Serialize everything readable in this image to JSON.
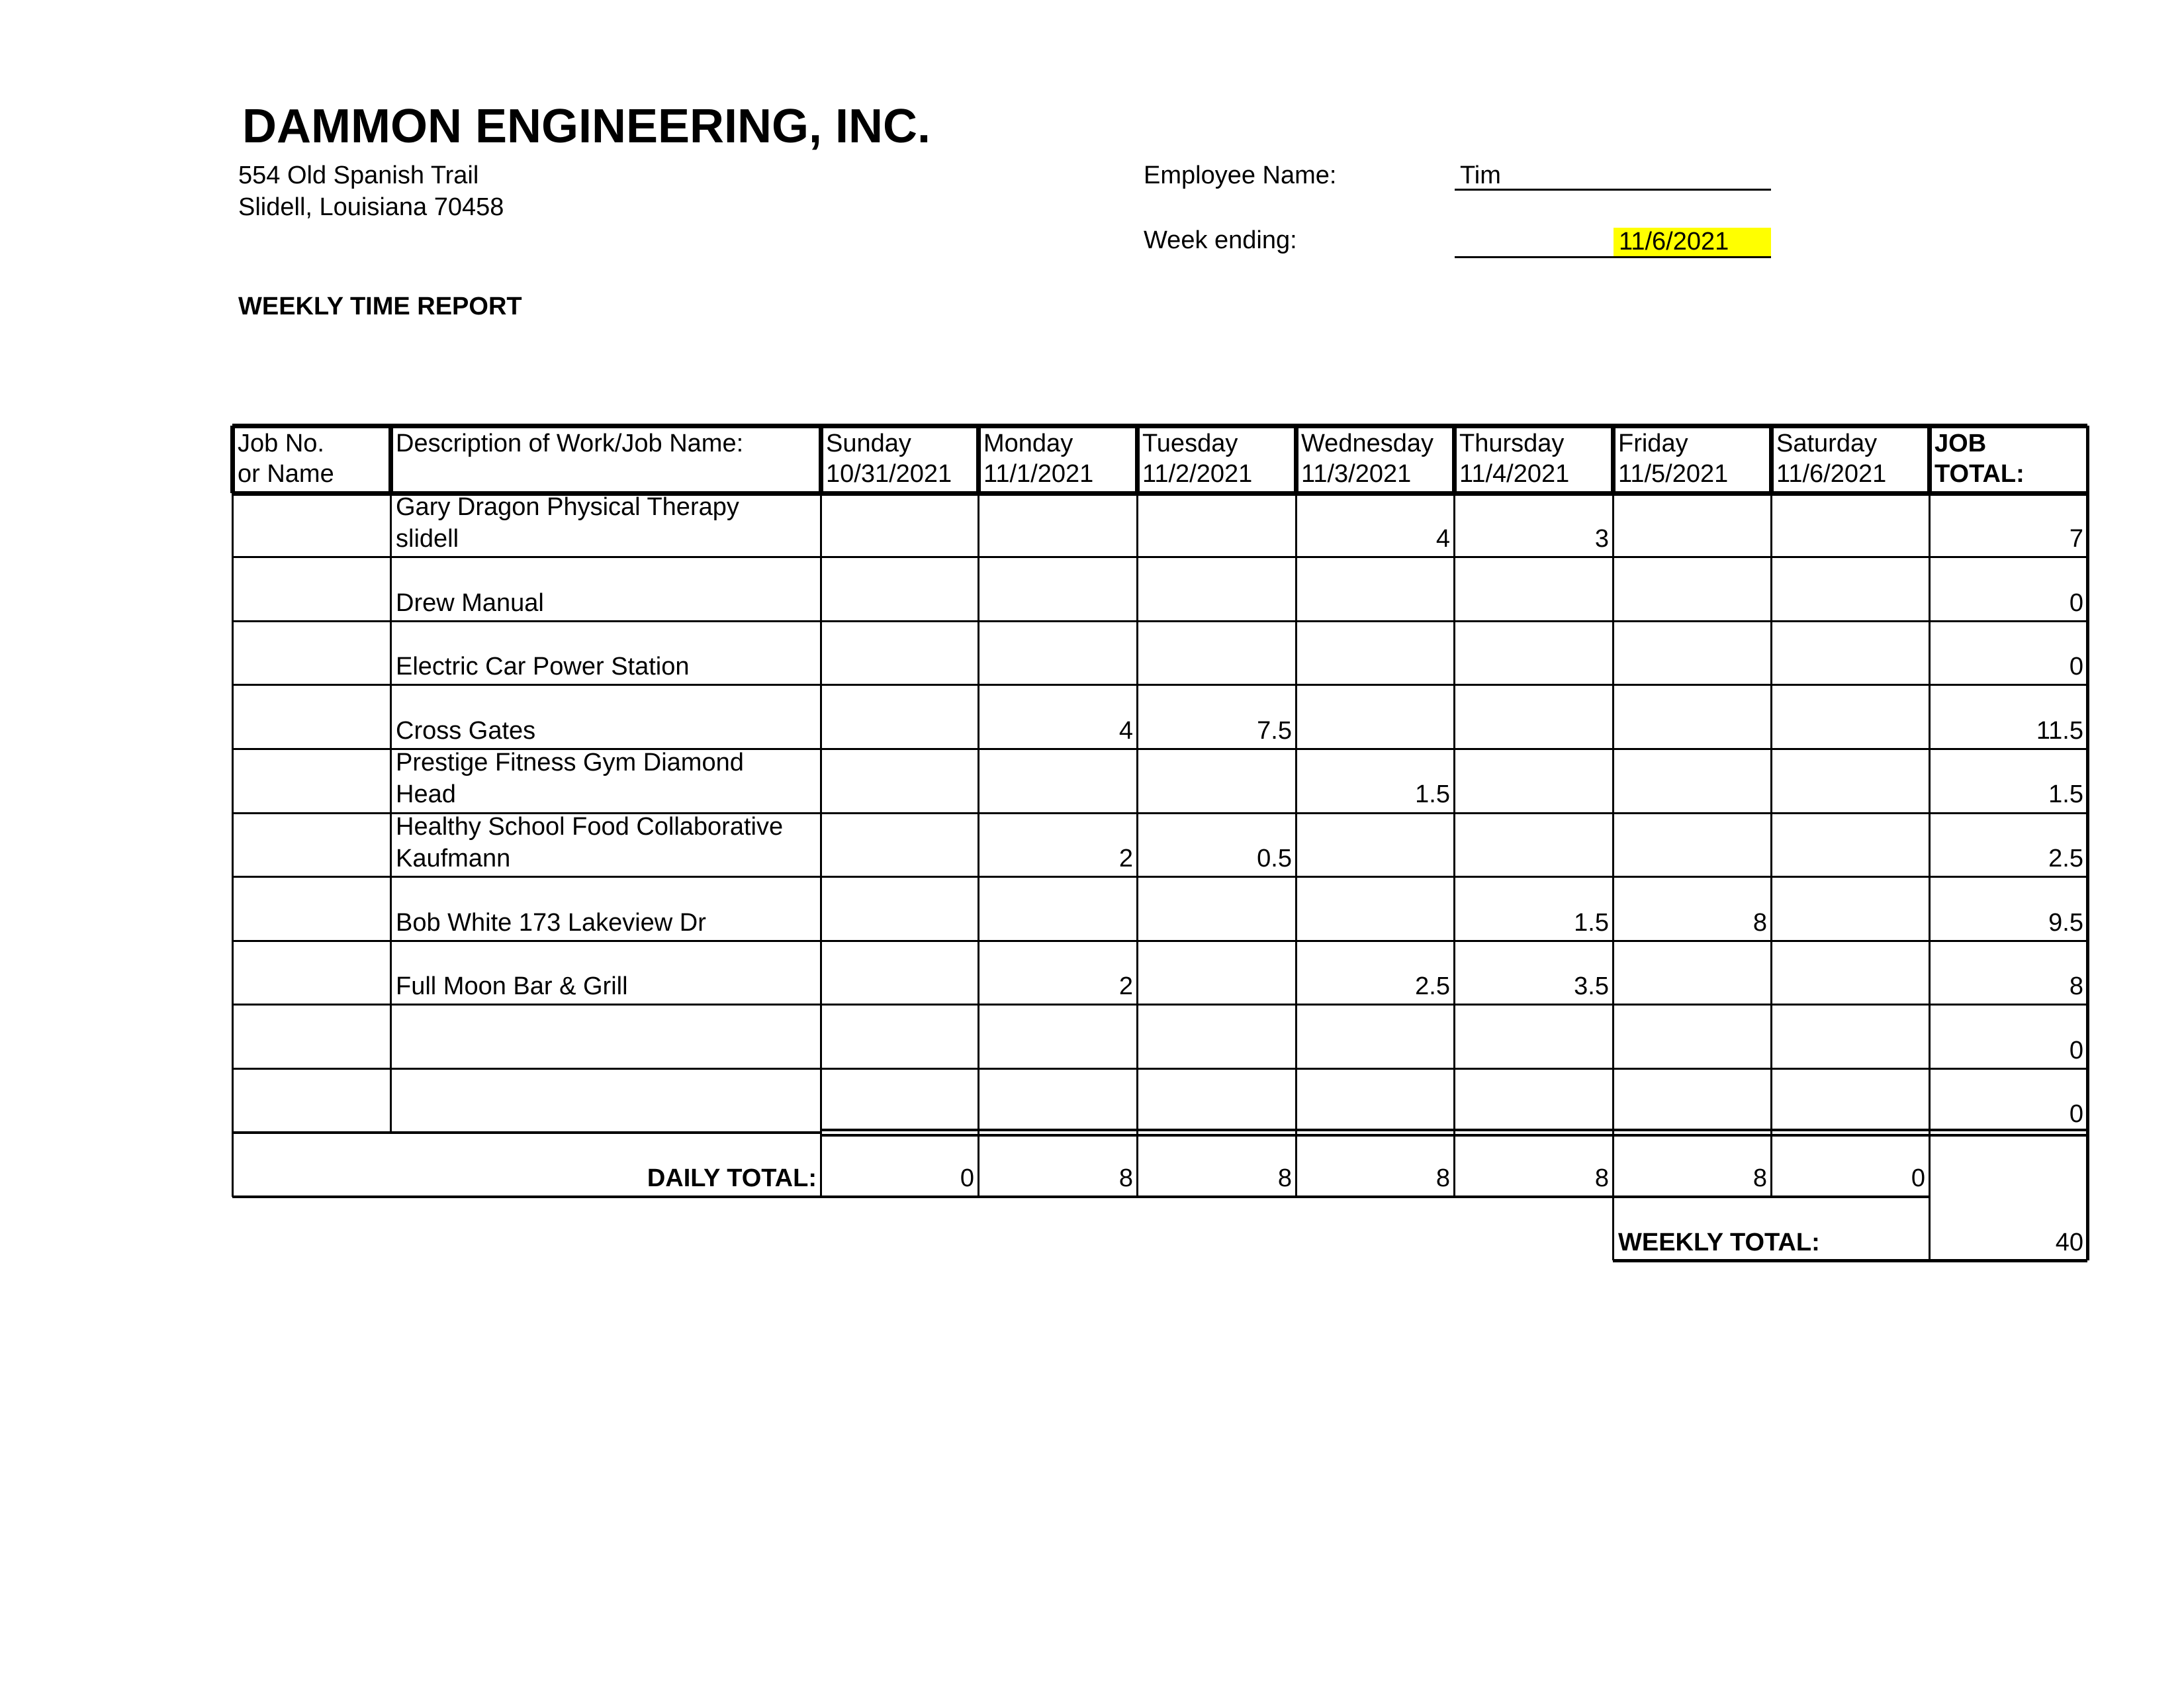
{
  "company": {
    "name": "DAMMON ENGINEERING, INC.",
    "address_line1": "554 Old Spanish Trail",
    "address_line2": "Slidell, Louisiana  70458"
  },
  "report_title": "WEEKLY TIME REPORT",
  "employee": {
    "label": "Employee Name:",
    "value": "Tim"
  },
  "week_ending": {
    "label": "Week ending:",
    "value": "11/6/2021",
    "highlight_color": "#ffff00"
  },
  "table": {
    "headers": [
      {
        "line1": "Job No.",
        "line2": "or Name"
      },
      {
        "line1": "Description of Work/Job Name:",
        "line2": ""
      },
      {
        "line1": "Sunday",
        "line2": "10/31/2021"
      },
      {
        "line1": "Monday",
        "line2": "11/1/2021"
      },
      {
        "line1": "Tuesday",
        "line2": "11/2/2021"
      },
      {
        "line1": "Wednesday",
        "line2": "11/3/2021"
      },
      {
        "line1": "Thursday",
        "line2": "11/4/2021"
      },
      {
        "line1": "Friday",
        "line2": "11/5/2021"
      },
      {
        "line1": "Saturday",
        "line2": "11/6/2021"
      },
      {
        "line1": "JOB",
        "line2": "TOTAL:"
      }
    ],
    "rows": [
      {
        "job": "",
        "desc1": "Gary Dragon Physical Therapy",
        "desc2": "slidell",
        "days": [
          "",
          "",
          "",
          "4",
          "3",
          "",
          ""
        ],
        "total": "7"
      },
      {
        "job": "",
        "desc1": "",
        "desc2": "Drew Manual",
        "days": [
          "",
          "",
          "",
          "",
          "",
          "",
          ""
        ],
        "total": "0"
      },
      {
        "job": "",
        "desc1": "",
        "desc2": "Electric Car Power Station",
        "days": [
          "",
          "",
          "",
          "",
          "",
          "",
          ""
        ],
        "total": "0"
      },
      {
        "job": "",
        "desc1": "",
        "desc2": "Cross Gates",
        "days": [
          "",
          "4",
          "7.5",
          "",
          "",
          "",
          ""
        ],
        "total": "11.5"
      },
      {
        "job": "",
        "desc1": "Prestige Fitness Gym Diamond",
        "desc2": "Head",
        "days": [
          "",
          "",
          "",
          "1.5",
          "",
          "",
          ""
        ],
        "total": "1.5"
      },
      {
        "job": "",
        "desc1": "Healthy School Food Collaborative",
        "desc2": "Kaufmann",
        "days": [
          "",
          "2",
          "0.5",
          "",
          "",
          "",
          ""
        ],
        "total": "2.5"
      },
      {
        "job": "",
        "desc1": "",
        "desc2": "Bob White 173 Lakeview Dr",
        "days": [
          "",
          "",
          "",
          "",
          "1.5",
          "8",
          ""
        ],
        "total": "9.5"
      },
      {
        "job": "",
        "desc1": "",
        "desc2": "Full Moon Bar & Grill",
        "days": [
          "",
          "2",
          "",
          "2.5",
          "3.5",
          "",
          ""
        ],
        "total": "8"
      },
      {
        "job": "",
        "desc1": "",
        "desc2": "",
        "days": [
          "",
          "",
          "",
          "",
          "",
          "",
          ""
        ],
        "total": "0"
      },
      {
        "job": "",
        "desc1": "",
        "desc2": "",
        "days": [
          "",
          "",
          "",
          "",
          "",
          "",
          ""
        ],
        "total": "0"
      }
    ],
    "daily_total_label": "DAILY TOTAL:",
    "daily_totals": [
      "0",
      "8",
      "8",
      "8",
      "8",
      "8",
      "0"
    ],
    "weekly_total_label": "WEEKLY TOTAL:",
    "weekly_total": "40"
  }
}
